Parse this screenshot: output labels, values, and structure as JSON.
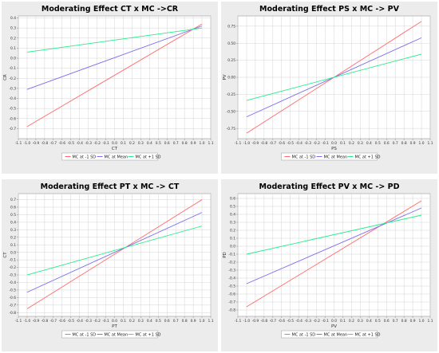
{
  "series_names": [
    "MC at -1 SD",
    "MC at Mean",
    "MC at +1 SD"
  ],
  "colors": {
    "low": "#ff6b6b",
    "mean": "#7b6cf0",
    "high": "#22ee88",
    "panel_bg": "#ececec",
    "plot_bg": "#ffffff",
    "grid": "#d4d4d4"
  },
  "chart_data": [
    {
      "type": "line",
      "title": "Moderating Effect CT x MC ->CR",
      "xlabel": "CT",
      "ylabel": "CR",
      "xlim": [
        -1.1,
        1.1
      ],
      "ylim": [
        -0.8,
        0.42
      ],
      "xticks": [
        -1.1,
        -1.0,
        -0.9,
        -0.8,
        -0.7,
        -0.6,
        -0.5,
        -0.4,
        -0.3,
        -0.2,
        -0.1,
        0.0,
        0.1,
        0.2,
        0.3,
        0.4,
        0.5,
        0.6,
        0.7,
        0.8,
        0.9,
        1.0,
        1.1
      ],
      "yticks": [
        0.4,
        0.3,
        0.2,
        0.1,
        0.0,
        -0.1,
        -0.2,
        -0.3,
        -0.4,
        -0.5,
        -0.6,
        -0.7
      ],
      "grid": true,
      "legend": "bottom",
      "series": [
        {
          "name": "MC at -1 SD",
          "x": [
            -1.0,
            1.0
          ],
          "y": [
            -0.68,
            0.34
          ]
        },
        {
          "name": "MC at Mean",
          "x": [
            -1.0,
            1.0
          ],
          "y": [
            -0.31,
            0.32
          ]
        },
        {
          "name": "MC at +1 SD",
          "x": [
            -1.0,
            1.0
          ],
          "y": [
            0.06,
            0.3
          ]
        }
      ]
    },
    {
      "type": "line",
      "title": "Moderating Effect PS x MC -> PV",
      "xlabel": "PS",
      "ylabel": "PV",
      "xlim": [
        -1.1,
        1.1
      ],
      "ylim": [
        -0.9,
        0.9
      ],
      "xticks": [
        -1.1,
        -1.0,
        -0.9,
        -0.8,
        -0.7,
        -0.6,
        -0.5,
        -0.4,
        -0.3,
        -0.2,
        -0.1,
        0.0,
        0.1,
        0.2,
        0.3,
        0.4,
        0.5,
        0.6,
        0.7,
        0.8,
        0.9,
        1.0,
        1.1
      ],
      "yticks": [
        0.75,
        0.5,
        0.25,
        0.0,
        -0.25,
        -0.5,
        -0.75
      ],
      "grid": true,
      "legend": "bottom",
      "series": [
        {
          "name": "MC at -1 SD",
          "x": [
            -1.0,
            1.0
          ],
          "y": [
            -0.82,
            0.82
          ]
        },
        {
          "name": "MC at Mean",
          "x": [
            -1.0,
            1.0
          ],
          "y": [
            -0.58,
            0.58
          ]
        },
        {
          "name": "MC at +1 SD",
          "x": [
            -1.0,
            1.0
          ],
          "y": [
            -0.34,
            0.34
          ]
        }
      ]
    },
    {
      "type": "line",
      "title": "Moderating Effect PT x MC -> CT",
      "xlabel": "PT",
      "ylabel": "CT",
      "xlim": [
        -1.1,
        1.1
      ],
      "ylim": [
        -0.85,
        0.78
      ],
      "xticks": [
        -1.1,
        -1.0,
        -0.9,
        -0.8,
        -0.7,
        -0.6,
        -0.5,
        -0.4,
        -0.3,
        -0.2,
        -0.1,
        0.0,
        0.1,
        0.2,
        0.3,
        0.4,
        0.5,
        0.6,
        0.7,
        0.8,
        0.9,
        1.0,
        1.1
      ],
      "yticks": [
        0.7,
        0.6,
        0.5,
        0.4,
        0.3,
        0.2,
        0.1,
        0.0,
        -0.1,
        -0.2,
        -0.3,
        -0.4,
        -0.5,
        -0.6,
        -0.7,
        -0.8
      ],
      "grid": true,
      "legend": "bottom",
      "series": [
        {
          "name": "MC at -1 SD",
          "x": [
            -1.0,
            1.0
          ],
          "y": [
            -0.75,
            0.7
          ]
        },
        {
          "name": "MC at Mean",
          "x": [
            -1.0,
            1.0
          ],
          "y": [
            -0.53,
            0.53
          ]
        },
        {
          "name": "MC at +1 SD",
          "x": [
            -1.0,
            1.0
          ],
          "y": [
            -0.3,
            0.35
          ]
        }
      ]
    },
    {
      "type": "line",
      "title": "Moderating Effect PV x MC -> PD",
      "xlabel": "PV",
      "ylabel": "PD",
      "xlim": [
        -1.1,
        1.1
      ],
      "ylim": [
        -0.88,
        0.66
      ],
      "xticks": [
        -1.1,
        -1.0,
        -0.9,
        -0.8,
        -0.7,
        -0.6,
        -0.5,
        -0.4,
        -0.3,
        -0.2,
        -0.1,
        0.0,
        0.1,
        0.2,
        0.3,
        0.4,
        0.5,
        0.6,
        0.7,
        0.8,
        0.9,
        1.0,
        1.1
      ],
      "yticks": [
        0.6,
        0.5,
        0.4,
        0.3,
        0.2,
        0.1,
        0.0,
        -0.1,
        -0.2,
        -0.3,
        -0.4,
        -0.5,
        -0.6,
        -0.7,
        -0.8
      ],
      "grid": true,
      "legend": "bottom",
      "series": [
        {
          "name": "MC at -1 SD",
          "x": [
            -1.0,
            1.0
          ],
          "y": [
            -0.76,
            0.57
          ]
        },
        {
          "name": "MC at Mean",
          "x": [
            -1.0,
            1.0
          ],
          "y": [
            -0.47,
            0.48
          ]
        },
        {
          "name": "MC at +1 SD",
          "x": [
            -1.0,
            1.0
          ],
          "y": [
            -0.1,
            0.39
          ]
        }
      ]
    }
  ]
}
